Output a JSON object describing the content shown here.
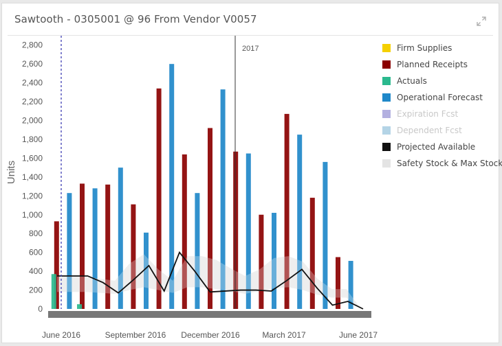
{
  "widget": {
    "title": "Sawtooth - 0305001 @ 96 From Vendor V0057",
    "expand_icon": "expand-arrows-icon"
  },
  "chart_data": {
    "type": "bar",
    "ylabel": "Units",
    "ylim": [
      0,
      2900
    ],
    "yticks": [
      0,
      200,
      400,
      600,
      800,
      1000,
      1200,
      1400,
      1600,
      1800,
      2000,
      2200,
      2400,
      2600,
      2800
    ],
    "x_tick_labels": [
      "June 2016",
      "September 2016",
      "December 2016",
      "March 2017",
      "June 2017"
    ],
    "year_marker_label": "2017",
    "grid": false,
    "legend_position": "right",
    "colors": {
      "firm_supplies": "#f5d000",
      "planned_receipts": "#8b0000",
      "actuals": "#2bb98e",
      "operational_forecast": "#1f88c9",
      "expiration_fcst": "#b3b0e0",
      "dependent_fcst": "#b4d4e6",
      "projected_available": "#111111",
      "safety_max_stock": "#e4e4e4"
    },
    "periods": 25,
    "series": [
      {
        "name": "Planned Receipts",
        "key": "planned_receipts",
        "type": "bar",
        "values": [
          930,
          null,
          1330,
          null,
          1320,
          null,
          1110,
          null,
          2340,
          null,
          1640,
          null,
          1920,
          null,
          1670,
          null,
          1000,
          null,
          2070,
          null,
          1180,
          null,
          550,
          null,
          null
        ]
      },
      {
        "name": "Actuals",
        "key": "actuals",
        "type": "bar",
        "values": [
          370,
          null,
          50,
          null,
          null,
          null,
          null,
          null,
          null,
          null,
          null,
          null,
          null,
          null,
          null,
          null,
          null,
          null,
          null,
          null,
          null,
          null,
          null,
          null,
          null
        ]
      },
      {
        "name": "Operational Forecast",
        "key": "operational_forecast",
        "type": "bar",
        "values": [
          null,
          1230,
          null,
          1280,
          null,
          1500,
          null,
          810,
          null,
          2600,
          null,
          1230,
          null,
          2330,
          null,
          1650,
          null,
          1020,
          null,
          1850,
          null,
          1560,
          null,
          510,
          null
        ]
      },
      {
        "name": "Projected Available",
        "key": "projected_available",
        "type": "line",
        "values": [
          350,
          350,
          350,
          280,
          170,
          310,
          460,
          190,
          600,
          400,
          180,
          190,
          200,
          200,
          190,
          300,
          420,
          220,
          40,
          80,
          0
        ]
      },
      {
        "name": "Safety Stock & Max Stock",
        "key": "safety_max_stock",
        "type": "area",
        "upper": [
          350,
          350,
          340,
          320,
          300,
          480,
          580,
          420,
          300,
          560,
          560,
          520,
          430,
          350,
          420,
          540,
          560,
          500,
          320,
          210,
          210,
          0
        ],
        "lower": [
          180,
          180,
          180,
          170,
          160,
          200,
          230,
          200,
          170,
          230,
          230,
          210,
          190,
          160,
          190,
          220,
          230,
          200,
          150,
          120,
          120,
          0
        ]
      }
    ],
    "legend": [
      {
        "label": "Firm Supplies",
        "key": "firm_supplies",
        "faded": false
      },
      {
        "label": "Planned Receipts",
        "key": "planned_receipts",
        "faded": false
      },
      {
        "label": "Actuals",
        "key": "actuals",
        "faded": false
      },
      {
        "label": "Operational Forecast",
        "key": "operational_forecast",
        "faded": false
      },
      {
        "label": "Expiration Fcst",
        "key": "expiration_fcst",
        "faded": true
      },
      {
        "label": "Dependent Fcst",
        "key": "dependent_fcst",
        "faded": true
      },
      {
        "label": "Projected Available",
        "key": "projected_available",
        "faded": false
      },
      {
        "label": "Safety Stock & Max Stock",
        "key": "safety_max_stock",
        "faded": false
      }
    ]
  }
}
